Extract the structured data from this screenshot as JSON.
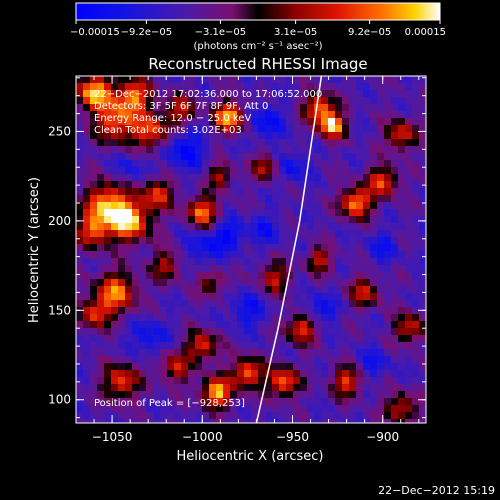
{
  "chart_data": {
    "type": "heatmap",
    "title": "Reconstructed RHESSI Image",
    "xlabel": "Heliocentric X (arcsec)",
    "ylabel": "Heliocentric Y (arcsec)",
    "xlim": [
      -1070,
      -876
    ],
    "ylim": [
      87,
      281
    ],
    "x_ticks": [
      -1050,
      -1000,
      -950,
      -900
    ],
    "x_tick_labels": [
      "−1050",
      "−1000",
      "−950",
      "−900"
    ],
    "y_ticks": [
      100,
      150,
      200,
      250
    ],
    "y_tick_labels": [
      "100",
      "150",
      "200",
      "250"
    ],
    "colorbar": {
      "range": [
        -0.00015,
        0.00015
      ],
      "ticks": [
        -0.00015,
        -9.2e-05,
        -3.1e-05,
        3.1e-05,
        9.2e-05,
        0.00015
      ],
      "tick_labels": [
        "−0.00015",
        "−9.2e−05",
        "−3.1e−05",
        "3.1e−05",
        "9.2e−05",
        "0.00015"
      ],
      "units": "(photons cm⁻² s⁻¹ asec⁻²)"
    },
    "annotations": {
      "time_range": "22−Dec−2012 17:02:36.000 to 17:06:52.000",
      "detectors": "Detectors: 3F 5F 6F 7F 8F 9F, Att 0",
      "energy": "Energy Range: 12.0 − 25.0 keV",
      "clean": "Clean    Total counts: 3.02E+03",
      "peak": "Position of Peak = [−928,253]"
    },
    "limb": {
      "points": [
        [
          -970,
          87
        ],
        [
          -958,
          140
        ],
        [
          -946,
          200
        ],
        [
          -934,
          281
        ]
      ]
    },
    "sources": [
      {
        "x": -1060,
        "y": 272,
        "amp": 1.0,
        "sigma": 7
      },
      {
        "x": -1048,
        "y": 255,
        "amp": 0.8,
        "sigma": 8
      },
      {
        "x": -1038,
        "y": 270,
        "amp": 0.85,
        "sigma": 7
      },
      {
        "x": -1028,
        "y": 250,
        "amp": 0.75,
        "sigma": 7
      },
      {
        "x": -1012,
        "y": 262,
        "amp": 0.6,
        "sigma": 6
      },
      {
        "x": -985,
        "y": 258,
        "amp": 1.0,
        "sigma": 6
      },
      {
        "x": -1053,
        "y": 210,
        "amp": 0.9,
        "sigma": 8
      },
      {
        "x": -1060,
        "y": 195,
        "amp": 0.75,
        "sigma": 7
      },
      {
        "x": -1040,
        "y": 200,
        "amp": 1.0,
        "sigma": 8
      },
      {
        "x": -1025,
        "y": 215,
        "amp": 0.7,
        "sigma": 6
      },
      {
        "x": -1000,
        "y": 205,
        "amp": 0.85,
        "sigma": 6
      },
      {
        "x": -990,
        "y": 225,
        "amp": 0.55,
        "sigma": 5
      },
      {
        "x": -1048,
        "y": 160,
        "amp": 0.85,
        "sigma": 8
      },
      {
        "x": -1060,
        "y": 148,
        "amp": 0.65,
        "sigma": 6
      },
      {
        "x": -1020,
        "y": 175,
        "amp": 0.55,
        "sigma": 6
      },
      {
        "x": -995,
        "y": 165,
        "amp": 0.5,
        "sigma": 5
      },
      {
        "x": -1000,
        "y": 130,
        "amp": 0.7,
        "sigma": 6
      },
      {
        "x": -1045,
        "y": 110,
        "amp": 0.75,
        "sigma": 7
      },
      {
        "x": -1015,
        "y": 118,
        "amp": 0.6,
        "sigma": 6
      },
      {
        "x": -992,
        "y": 104,
        "amp": 1.0,
        "sigma": 6
      },
      {
        "x": -975,
        "y": 115,
        "amp": 0.85,
        "sigma": 6
      },
      {
        "x": -960,
        "y": 168,
        "amp": 0.6,
        "sigma": 6
      },
      {
        "x": -965,
        "y": 230,
        "amp": 0.6,
        "sigma": 5
      },
      {
        "x": -935,
        "y": 263,
        "amp": 0.85,
        "sigma": 6
      },
      {
        "x": -928,
        "y": 253,
        "amp": 1.0,
        "sigma": 5
      },
      {
        "x": -915,
        "y": 210,
        "amp": 0.95,
        "sigma": 6
      },
      {
        "x": -900,
        "y": 222,
        "amp": 0.75,
        "sigma": 6
      },
      {
        "x": -890,
        "y": 248,
        "amp": 0.7,
        "sigma": 6
      },
      {
        "x": -935,
        "y": 178,
        "amp": 0.6,
        "sigma": 5
      },
      {
        "x": -910,
        "y": 160,
        "amp": 0.6,
        "sigma": 6
      },
      {
        "x": -885,
        "y": 140,
        "amp": 0.65,
        "sigma": 6
      },
      {
        "x": -945,
        "y": 140,
        "amp": 0.75,
        "sigma": 6
      },
      {
        "x": -955,
        "y": 110,
        "amp": 0.85,
        "sigma": 6
      },
      {
        "x": -920,
        "y": 110,
        "amp": 0.7,
        "sigma": 6
      },
      {
        "x": -890,
        "y": 95,
        "amp": 0.65,
        "sigma": 6
      }
    ],
    "negatives": [
      {
        "x": -1010,
        "y": 240,
        "amp": 0.9,
        "sigma": 8
      },
      {
        "x": -965,
        "y": 255,
        "amp": 0.8,
        "sigma": 7
      },
      {
        "x": -1000,
        "y": 185,
        "amp": 0.7,
        "sigma": 7
      },
      {
        "x": -985,
        "y": 192,
        "amp": 0.9,
        "sigma": 6
      },
      {
        "x": -965,
        "y": 195,
        "amp": 0.6,
        "sigma": 6
      },
      {
        "x": -1030,
        "y": 135,
        "amp": 0.7,
        "sigma": 7
      },
      {
        "x": -975,
        "y": 150,
        "amp": 0.7,
        "sigma": 7
      },
      {
        "x": -935,
        "y": 150,
        "amp": 0.8,
        "sigma": 6
      },
      {
        "x": -900,
        "y": 185,
        "amp": 0.6,
        "sigma": 6
      },
      {
        "x": -950,
        "y": 230,
        "amp": 0.7,
        "sigma": 6
      },
      {
        "x": -1040,
        "y": 230,
        "amp": 0.5,
        "sigma": 6
      },
      {
        "x": -905,
        "y": 120,
        "amp": 0.6,
        "sigma": 6
      }
    ],
    "grid": false,
    "colormap": "rainbow-hot"
  },
  "footer": {
    "date": "22−Dec−2012 15:19"
  }
}
